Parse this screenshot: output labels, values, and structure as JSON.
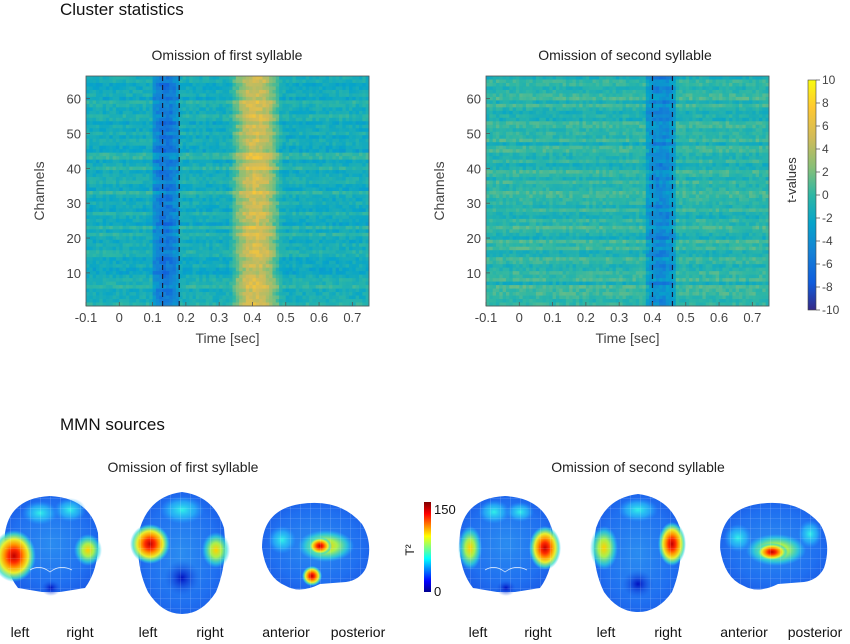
{
  "section1": {
    "title": "Cluster statistics"
  },
  "section2": {
    "title": "MMN sources"
  },
  "heatmaps": [
    {
      "title": "Omission of first syllable",
      "xlabel": "Time [sec]",
      "ylabel": "Channels",
      "xticks": [
        "-0.1",
        "0",
        "0.1",
        "0.2",
        "0.3",
        "0.4",
        "0.5",
        "0.6",
        "0.7"
      ],
      "yticks": [
        "10",
        "20",
        "30",
        "40",
        "50",
        "60"
      ],
      "dashed_lines_sec": [
        0.13,
        0.18
      ],
      "blue_band_sec": [
        0.1,
        0.18
      ],
      "yellow_band_sec": [
        0.35,
        0.47
      ]
    },
    {
      "title": "Omission of second syllable",
      "xlabel": "Time [sec]",
      "ylabel": "Channels",
      "xticks": [
        "-0.1",
        "0",
        "0.1",
        "0.2",
        "0.3",
        "0.4",
        "0.5",
        "0.6",
        "0.7"
      ],
      "yticks": [
        "10",
        "20",
        "30",
        "40",
        "50",
        "60"
      ],
      "dashed_lines_sec": [
        0.4,
        0.46
      ],
      "blue_band_sec": [
        0.38,
        0.47
      ],
      "yellow_band_sec": []
    }
  ],
  "colorbar": {
    "label": "t-values",
    "ticks": [
      "10",
      "8",
      "6",
      "4",
      "2",
      "0",
      "-2",
      "-4",
      "-6",
      "-8",
      "-10"
    ]
  },
  "sources": {
    "left_title": "Omission of first syllable",
    "right_title": "Omission of second syllable",
    "views": [
      "left",
      "right",
      "left",
      "right",
      "anterior",
      "posterior"
    ],
    "colorbar_label": "T²",
    "colorbar_max": "150",
    "colorbar_min": "0"
  },
  "chart_data": [
    {
      "type": "heatmap",
      "title": "Omission of first syllable",
      "xlabel": "Time [sec]",
      "ylabel": "Channels",
      "xlim": [
        -0.1,
        0.75
      ],
      "ylim": [
        1,
        66
      ],
      "clim": [
        -10,
        10
      ],
      "colorbar_label": "t-values"
    },
    {
      "type": "heatmap",
      "title": "Omission of second syllable",
      "xlabel": "Time [sec]",
      "ylabel": "Channels",
      "xlim": [
        -0.1,
        0.75
      ],
      "ylim": [
        1,
        66
      ],
      "clim": [
        -10,
        10
      ],
      "colorbar_label": "t-values"
    }
  ],
  "colors": {
    "parula_low": "#352a87",
    "parula_mid": "#21b0c8",
    "parula_high": "#f9fb0e",
    "jet_low": "#00008f",
    "jet_high": "#800000"
  }
}
